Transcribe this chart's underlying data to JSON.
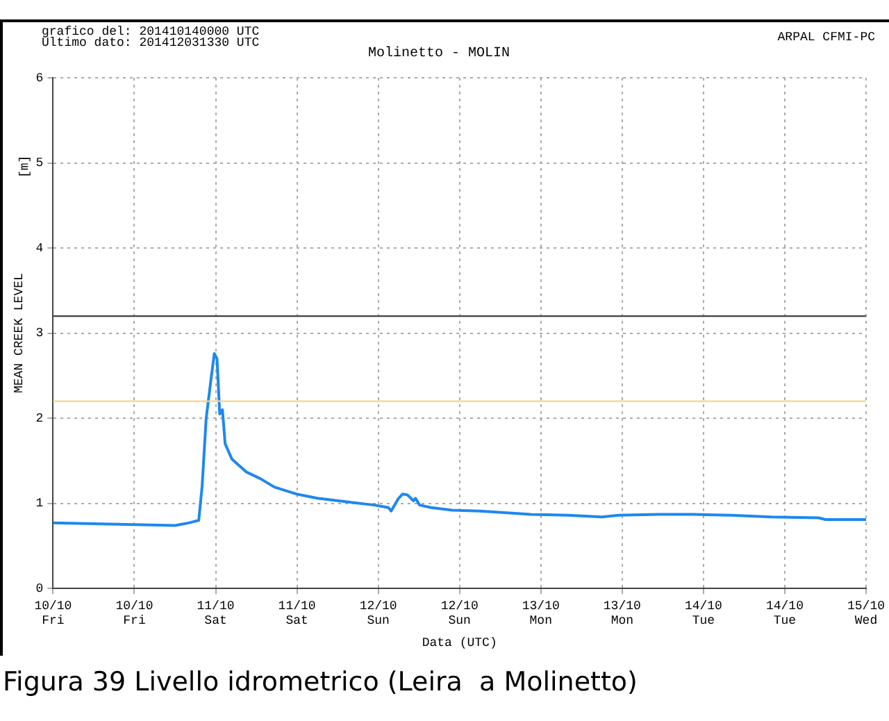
{
  "chart_data": {
    "type": "line",
    "title": "Molinetto - MOLIN",
    "xlabel": "Data (UTC)",
    "ylabel": "MEAN CREEK LEVEL",
    "annotations": [
      "grafico del: 201410140000 UTC",
      "Ultimo dato: 201412031330 UTC",
      "ARPAL CFMI-PC",
      "[m]",
      "Figura 39 Livello idrometrico (Leira  a Molinetto)"
    ],
    "series": [
      {
        "color": "#1e88f0",
        "x": [
          "2014-10-10T00:00",
          "2014-10-10T06:00",
          "2014-10-10T12:00",
          "2014-10-10T18:00",
          "2014-10-10T20:00",
          "2014-10-10T21:30",
          "2014-10-10T22:00",
          "2014-10-10T22:36",
          "2014-10-10T23:18",
          "2014-10-10T23:48",
          "2014-10-11T00:12",
          "2014-10-11T00:36",
          "2014-10-11T01:00",
          "2014-10-11T01:24",
          "2014-10-11T02:24",
          "2014-10-11T04:30",
          "2014-10-11T06:36",
          "2014-10-11T08:42",
          "2014-10-11T11:54",
          "2014-10-11T15:00",
          "2014-10-11T19:12",
          "2014-10-11T23:24",
          "2014-10-12T01:30",
          "2014-10-12T01:54",
          "2014-10-12T03:00",
          "2014-10-12T03:36",
          "2014-10-12T04:18",
          "2014-10-12T05:12",
          "2014-10-12T05:30",
          "2014-10-12T06:06",
          "2014-10-12T07:48",
          "2014-10-12T10:54",
          "2014-10-12T15:00",
          "2014-10-12T17:00",
          "2014-10-12T22:30",
          "2014-10-13T04:00",
          "2014-10-13T09:00",
          "2014-10-13T11:30",
          "2014-10-13T17:24",
          "2014-10-13T22:24",
          "2014-10-14T04:00",
          "2014-10-14T10:00",
          "2014-10-14T17:00",
          "2014-10-14T18:00",
          "2014-10-15T00:00"
        ],
        "values": [
          0.77,
          0.76,
          0.75,
          0.74,
          0.77,
          0.8,
          1.2,
          2.0,
          2.45,
          2.76,
          2.7,
          2.05,
          2.1,
          1.7,
          1.52,
          1.37,
          1.29,
          1.19,
          1.11,
          1.06,
          1.02,
          0.98,
          0.95,
          0.91,
          1.06,
          1.11,
          1.1,
          1.03,
          1.06,
          0.98,
          0.95,
          0.92,
          0.91,
          0.9,
          0.87,
          0.86,
          0.84,
          0.86,
          0.87,
          0.87,
          0.86,
          0.84,
          0.83,
          0.81,
          0.81
        ]
      }
    ],
    "xlim": [
      "2014-10-10T00:00",
      "2014-10-15T00:00"
    ],
    "xticks": [
      {
        "value": "2014-10-10T00:00",
        "label": "10/10\nFri"
      },
      {
        "value": "2014-10-10T12:00",
        "label": "10/10\nFri"
      },
      {
        "value": "2014-10-11T00:00",
        "label": "11/10\nSat"
      },
      {
        "value": "2014-10-11T12:00",
        "label": "11/10\nSat"
      },
      {
        "value": "2014-10-12T00:00",
        "label": "12/10\nSun"
      },
      {
        "value": "2014-10-12T12:00",
        "label": "12/10\nSun"
      },
      {
        "value": "2014-10-13T00:00",
        "label": "13/10\nMon"
      },
      {
        "value": "2014-10-13T12:00",
        "label": "13/10\nMon"
      },
      {
        "value": "2014-10-14T00:00",
        "label": "14/10\nTue"
      },
      {
        "value": "2014-10-14T12:00",
        "label": "14/10\nTue"
      },
      {
        "value": "2014-10-15T00:00",
        "label": "15/10\nWed"
      }
    ],
    "ylim": [
      0,
      6
    ],
    "yticks": [
      0,
      1,
      2,
      3,
      4,
      5,
      6
    ],
    "grid": true,
    "marker": "none",
    "line_style": "solid",
    "ref_lines": [
      {
        "axis": "y",
        "value": 3.2,
        "color": "#404040"
      },
      {
        "axis": "y",
        "value": 2.2,
        "color": "#f5d58a"
      }
    ]
  }
}
